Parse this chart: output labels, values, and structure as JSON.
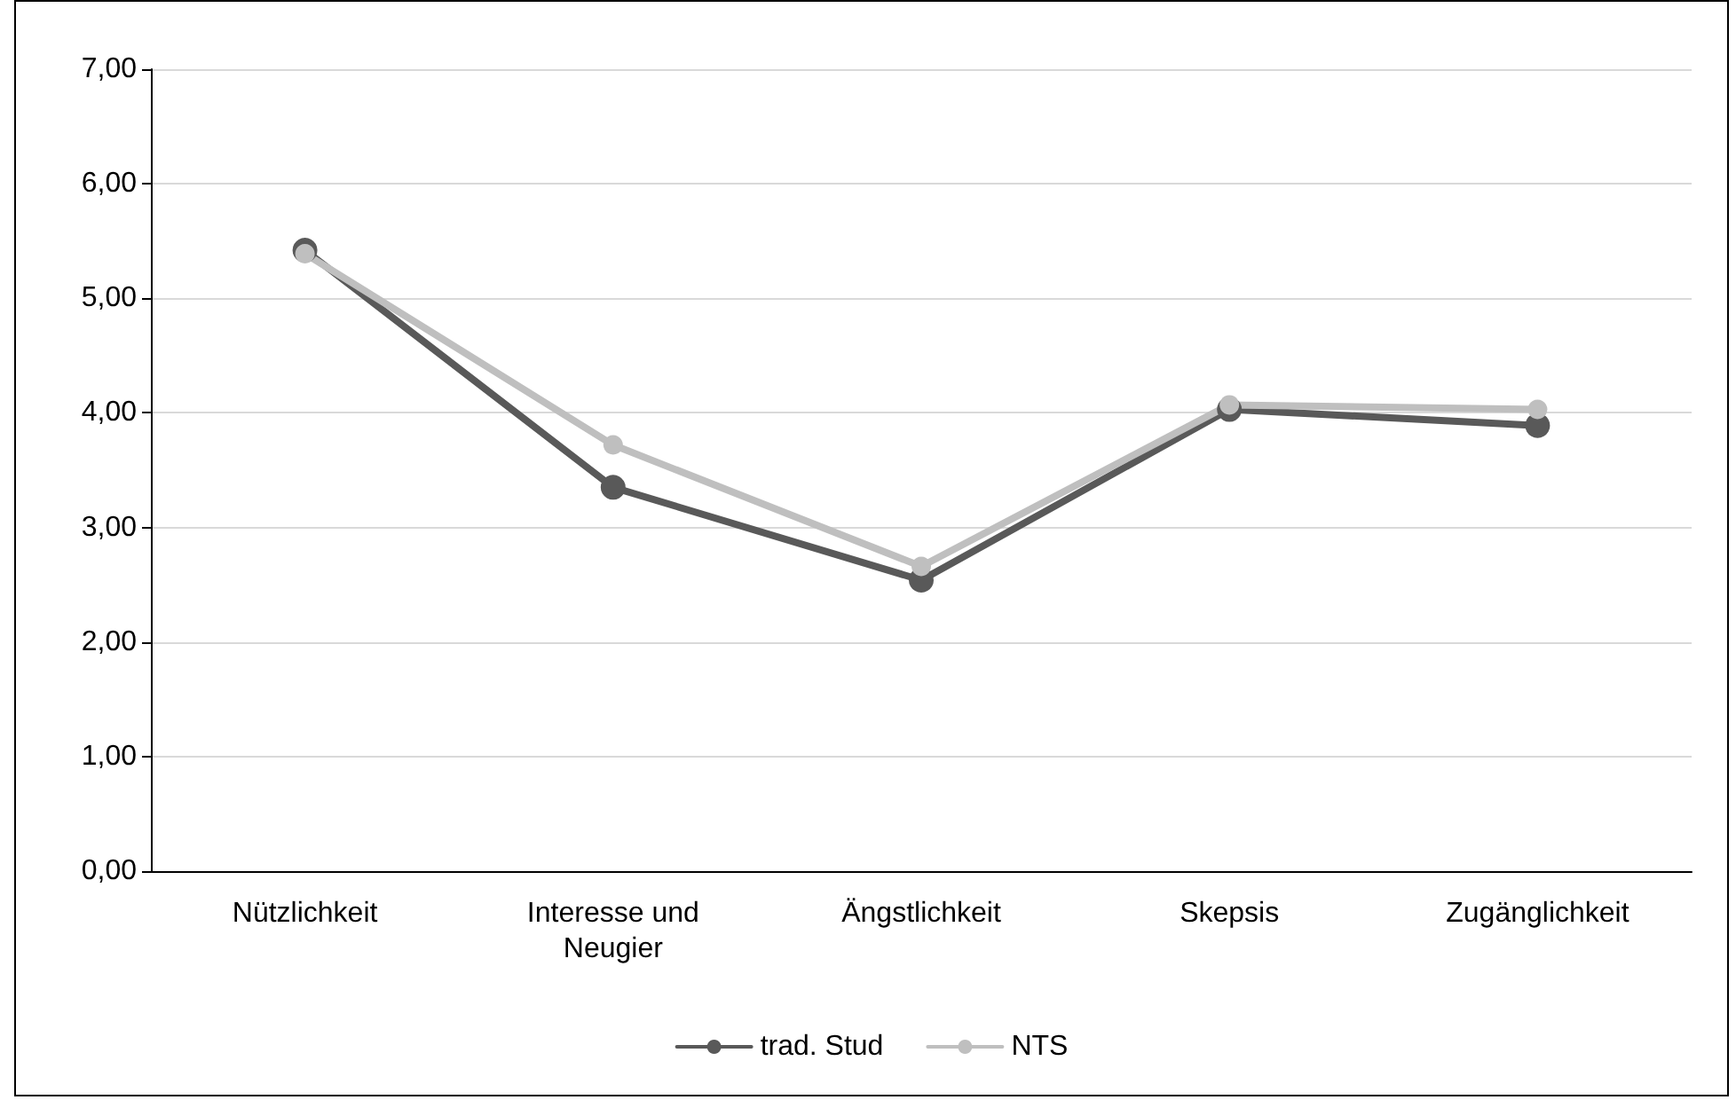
{
  "chart_data": {
    "type": "line",
    "categories": [
      "Nützlichkeit",
      "Interesse und\nNeugier",
      "Ängstlichkeit",
      "Skepsis",
      "Zugänglichkeit"
    ],
    "series": [
      {
        "name": "trad. Stud",
        "color": "#595959",
        "values": [
          5.42,
          3.35,
          2.54,
          4.03,
          3.89
        ]
      },
      {
        "name": "NTS",
        "color": "#bfbfbf",
        "values": [
          5.39,
          3.72,
          2.66,
          4.07,
          4.03
        ]
      }
    ],
    "ylim": [
      0,
      7
    ],
    "yticks": [
      {
        "value": 0,
        "label": "0,00"
      },
      {
        "value": 1,
        "label": "1,00"
      },
      {
        "value": 2,
        "label": "2,00"
      },
      {
        "value": 3,
        "label": "3,00"
      },
      {
        "value": 4,
        "label": "4,00"
      },
      {
        "value": 5,
        "label": "5,00"
      },
      {
        "value": 6,
        "label": "6,00"
      },
      {
        "value": 7,
        "label": "7,00"
      }
    ],
    "grid": "y",
    "legend": "bottom",
    "marker": "circle",
    "line_style": "solid"
  }
}
